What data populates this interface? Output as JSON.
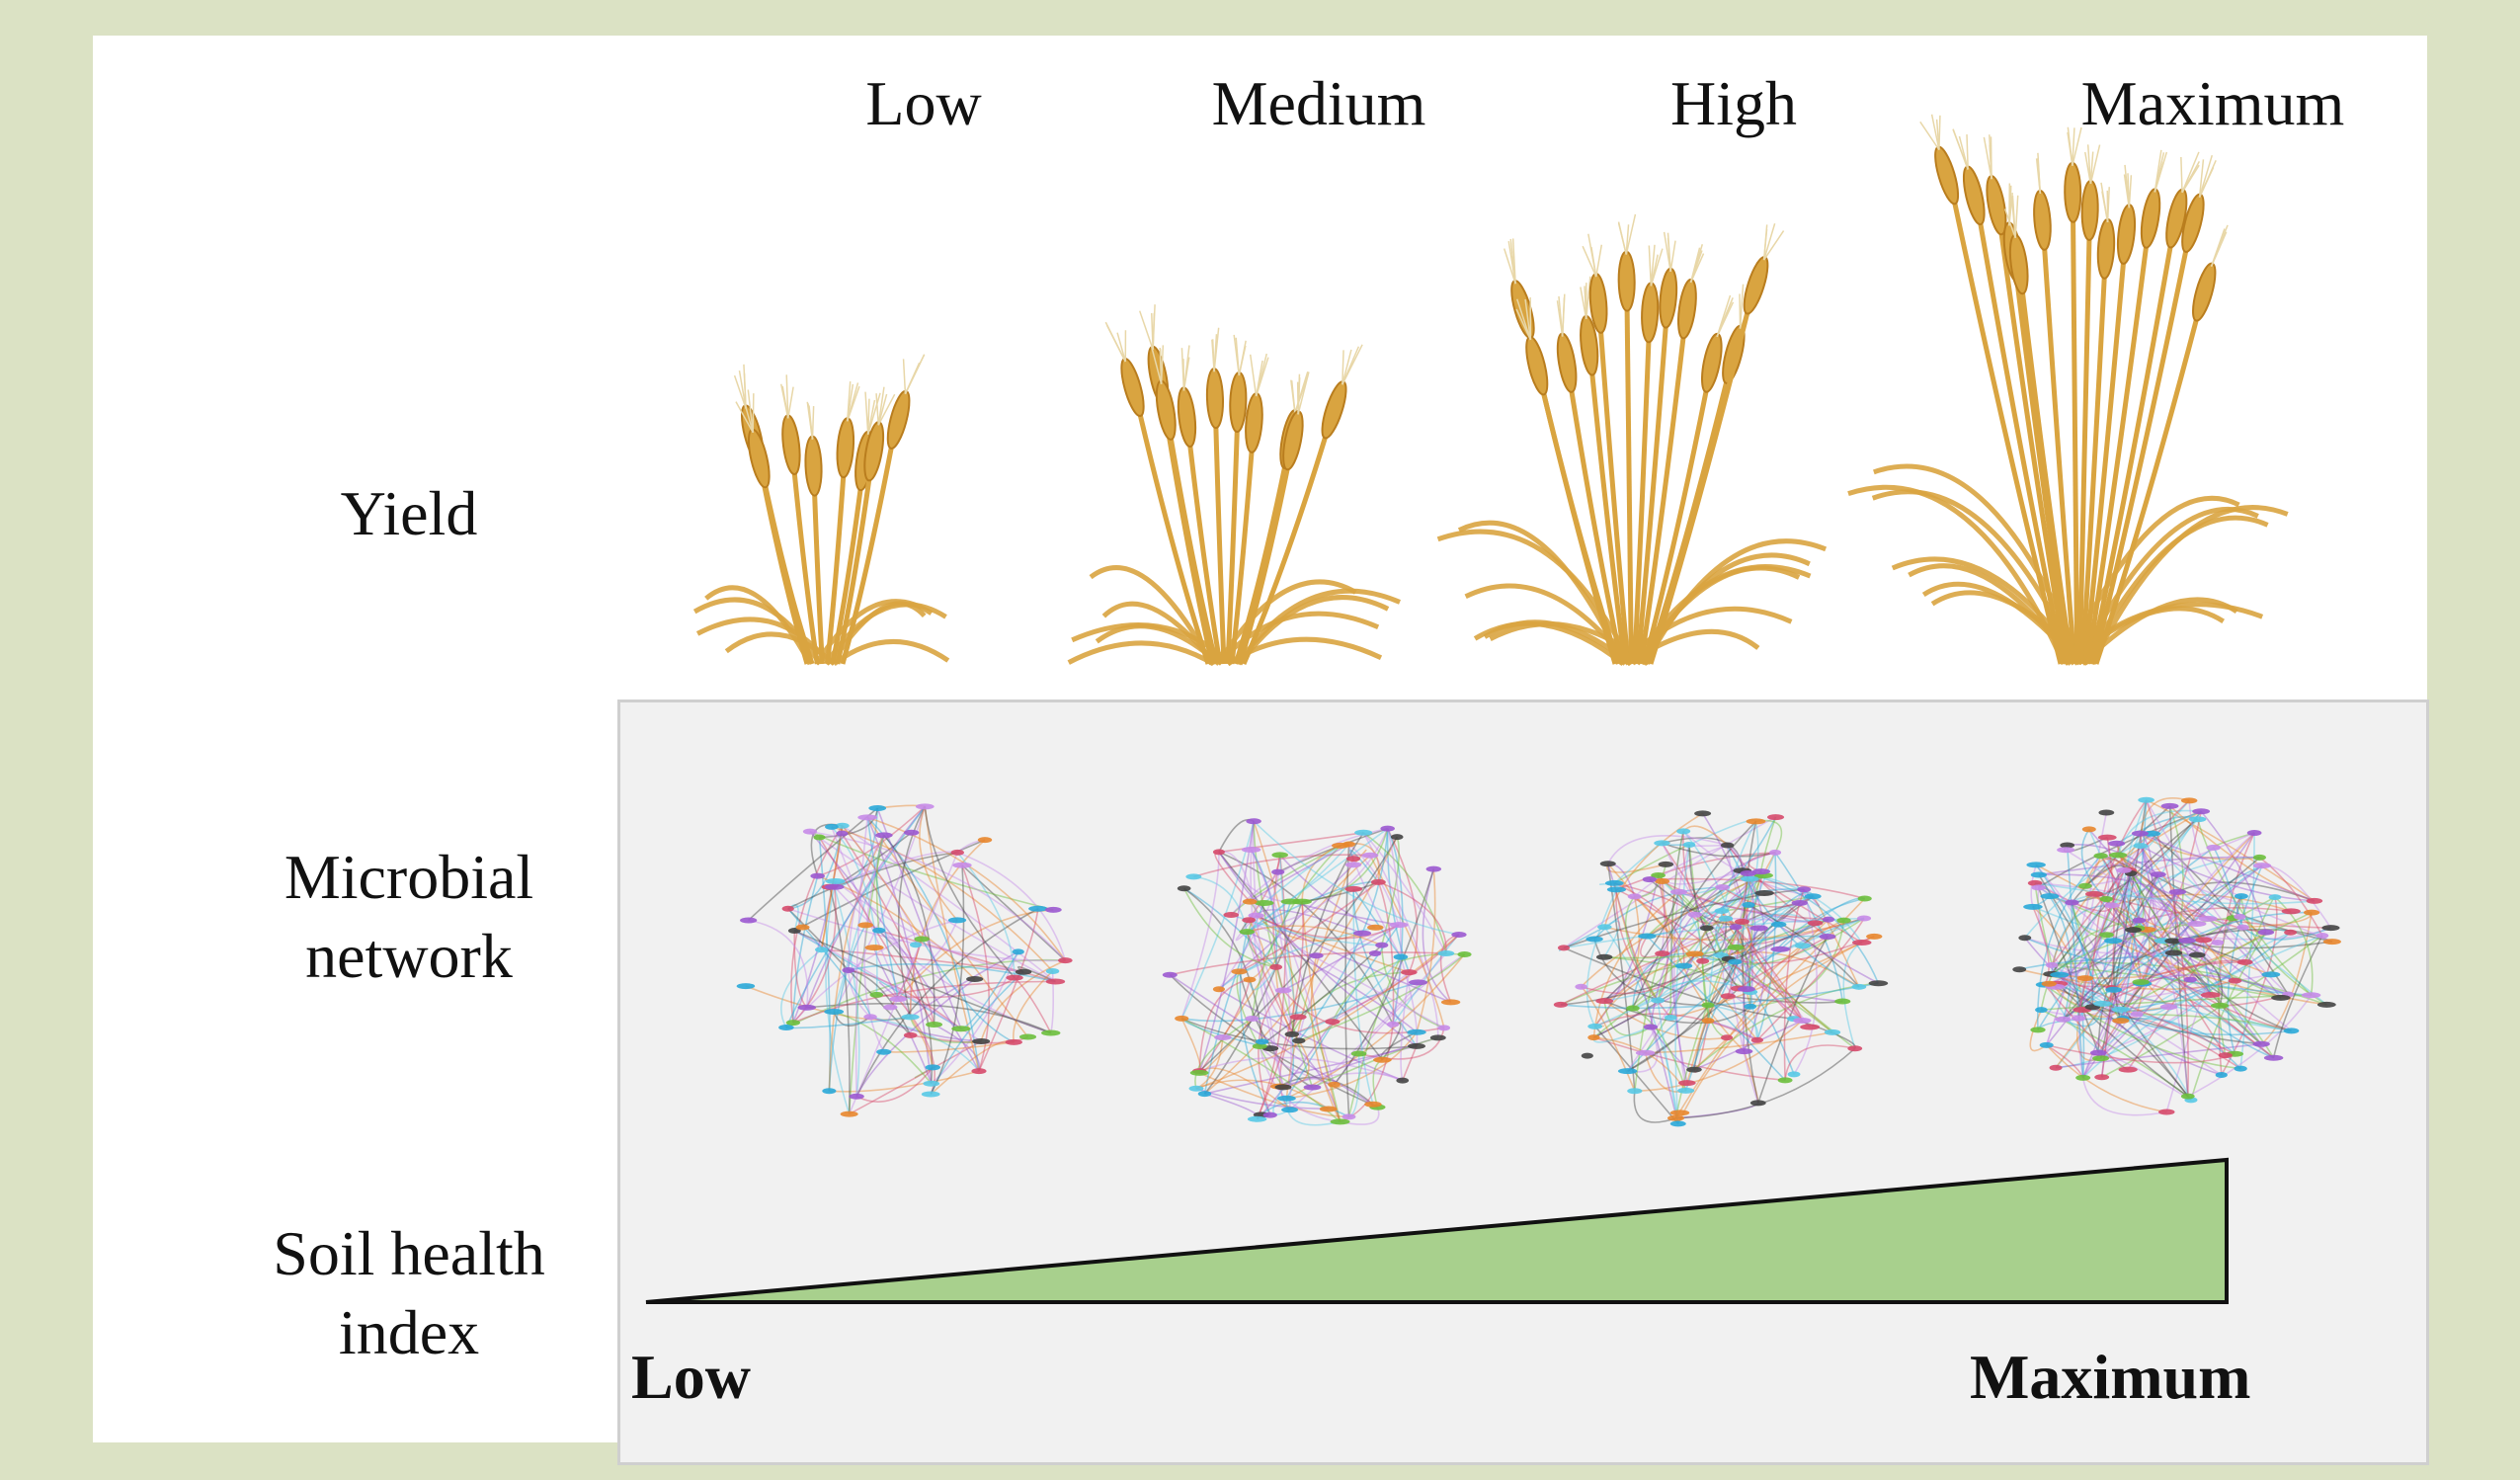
{
  "columns": {
    "low": "Low",
    "medium": "Medium",
    "high": "High",
    "maximum": "Maximum"
  },
  "rows": {
    "yield": "Yield",
    "microbial_network": [
      "Microbial",
      "network"
    ],
    "soil_health_index": [
      "Soil health",
      "index"
    ]
  },
  "soil_axis": {
    "start": "Low",
    "end": "Maximum"
  },
  "levels": [
    {
      "name": "Low",
      "yield_level": 1,
      "network_density": 1
    },
    {
      "name": "Medium",
      "yield_level": 2,
      "network_density": 2
    },
    {
      "name": "High",
      "yield_level": 3,
      "network_density": 3
    },
    {
      "name": "Maximum",
      "yield_level": 4,
      "network_density": 4
    }
  ],
  "colors": {
    "background": "#dbe2c4",
    "wedge_fill": "#a8d08d",
    "wheat": "#d9a440",
    "wheat_dark": "#b97d1e"
  }
}
